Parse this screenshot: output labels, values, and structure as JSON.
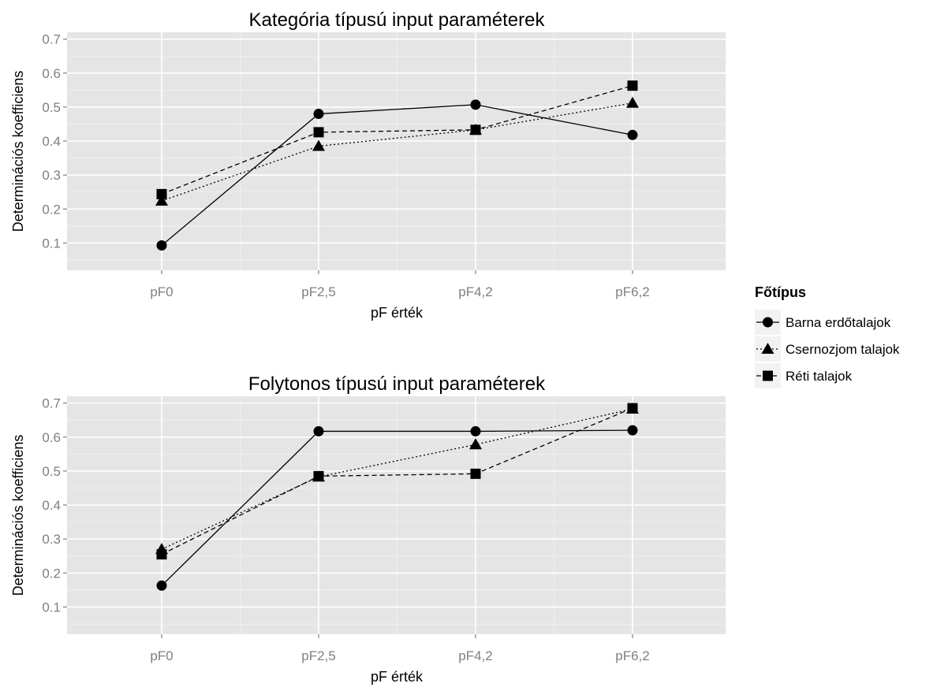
{
  "chart_data": [
    {
      "type": "line",
      "title": "Kategória típusú input paraméterek",
      "xlabel": "pF érték",
      "ylabel": "Determinációs koefficiens",
      "categories": [
        "pF0",
        "pF2,5",
        "pF4,2",
        "pF6,2"
      ],
      "y_ticks": [
        "0.1",
        "0.2",
        "0.3",
        "0.4",
        "0.5",
        "0.6",
        "0.7"
      ],
      "ylim": [
        0.02,
        0.72
      ],
      "grid": true,
      "series": [
        {
          "name": "Barna erdőtalajok",
          "values": [
            0.093,
            0.48,
            0.507,
            0.418
          ],
          "marker": "circle",
          "dash": "solid"
        },
        {
          "name": "Csernozjom talajok",
          "values": [
            0.224,
            0.385,
            0.433,
            0.512
          ],
          "marker": "triangle",
          "dash": "dotted"
        },
        {
          "name": "Réti talajok",
          "values": [
            0.244,
            0.426,
            0.433,
            0.563
          ],
          "marker": "square",
          "dash": "dashed"
        }
      ]
    },
    {
      "type": "line",
      "title": "Folytonos típusú input paraméterek",
      "xlabel": "pF érték",
      "ylabel": "Determinációs koefficiens",
      "categories": [
        "pF0",
        "pF2,5",
        "pF4,2",
        "pF6,2"
      ],
      "y_ticks": [
        "0.1",
        "0.2",
        "0.3",
        "0.4",
        "0.5",
        "0.6",
        "0.7"
      ],
      "ylim": [
        0.02,
        0.72
      ],
      "grid": true,
      "series": [
        {
          "name": "Barna erdőtalajok",
          "values": [
            0.163,
            0.617,
            0.617,
            0.62
          ],
          "marker": "circle",
          "dash": "solid"
        },
        {
          "name": "Csernozjom talajok",
          "values": [
            0.27,
            0.483,
            0.578,
            0.683
          ],
          "marker": "triangle",
          "dash": "dotted"
        },
        {
          "name": "Réti talajok",
          "values": [
            0.255,
            0.485,
            0.492,
            0.685
          ],
          "marker": "square",
          "dash": "dashed"
        }
      ]
    }
  ],
  "legend": {
    "title": "Főtípus",
    "placement": "right",
    "items": [
      {
        "label": "Barna erdőtalajok",
        "marker": "circle",
        "dash": "solid"
      },
      {
        "label": "Csernozjom talajok",
        "marker": "triangle",
        "dash": "dotted"
      },
      {
        "label": "Réti talajok",
        "marker": "square",
        "dash": "dashed"
      }
    ]
  },
  "colors": {
    "panel_background": "#e5e5e5",
    "grid": "#ffffff",
    "tick_label": "#7f7f7f",
    "series": "#000000"
  }
}
